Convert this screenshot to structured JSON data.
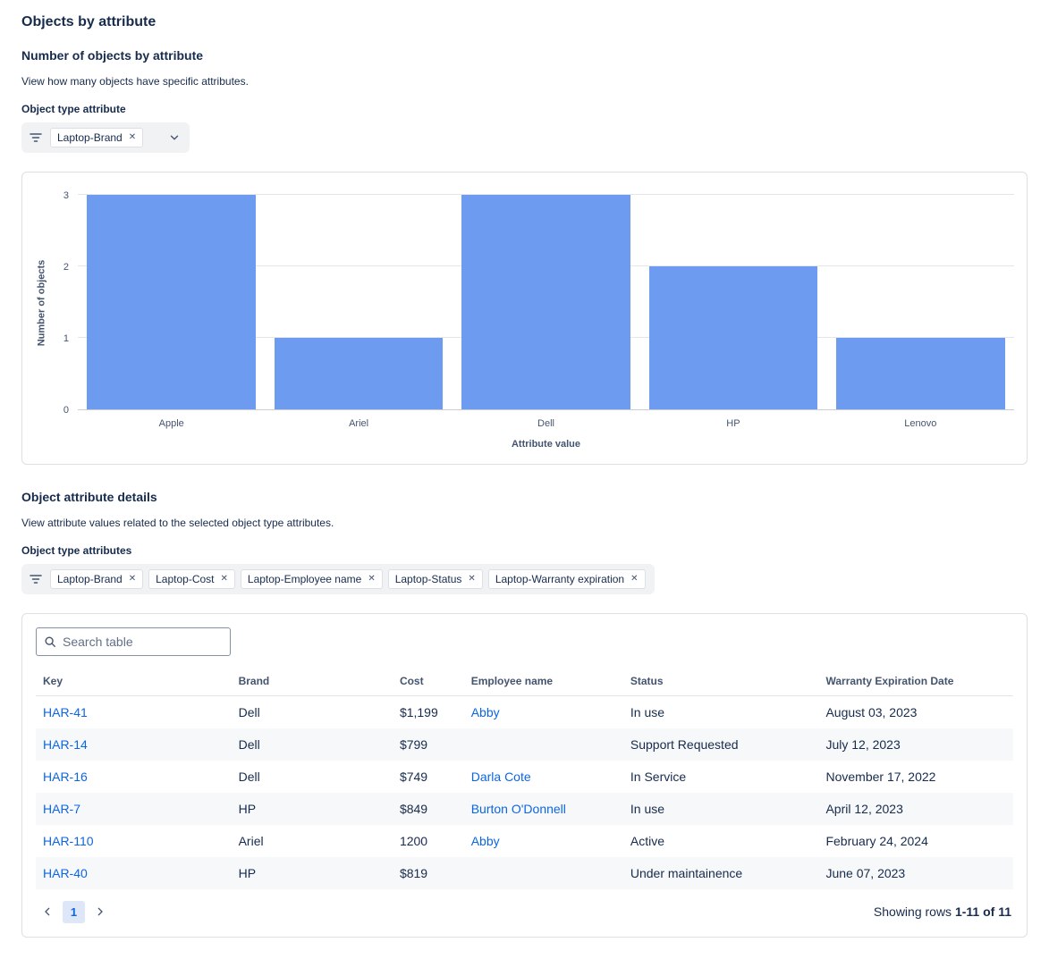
{
  "page": {
    "title": "Objects by attribute"
  },
  "colors": {
    "bar": "#6C9BF0",
    "link": "#0C66E4",
    "selected_page_bg": "#DEE7F7"
  },
  "chart_section": {
    "heading": "Number of objects by attribute",
    "description": "View how many objects have specific attributes.",
    "filter_label": "Object type attribute",
    "filter_tags": [
      "Laptop-Brand"
    ]
  },
  "chart_data": {
    "type": "bar",
    "categories": [
      "Apple",
      "Ariel",
      "Dell",
      "HP",
      "Lenovo"
    ],
    "values": [
      3,
      1,
      3,
      2,
      1
    ],
    "title": "",
    "xlabel": "Attribute value",
    "ylabel": "Number of objects",
    "ylim": [
      0,
      3
    ],
    "yticks": [
      0,
      1,
      2,
      3
    ],
    "bar_color": "#6C9BF0",
    "grid": true,
    "legend": false
  },
  "details_section": {
    "heading": "Object attribute details",
    "description": "View attribute values related to the selected object type attributes.",
    "filter_label": "Object type attributes",
    "filter_tags": [
      "Laptop-Brand",
      "Laptop-Cost",
      "Laptop-Employee name",
      "Laptop-Status",
      "Laptop-Warranty expiration"
    ]
  },
  "table": {
    "search_placeholder": "Search table",
    "columns": [
      "Key",
      "Brand",
      "Cost",
      "Employee name",
      "Status",
      "Warranty Expiration Date"
    ],
    "rows": [
      {
        "key": "HAR-41",
        "brand": "Dell",
        "cost": "$1,199",
        "employee": "Abby",
        "status": "In use",
        "warranty": "August 03, 2023"
      },
      {
        "key": "HAR-14",
        "brand": "Dell",
        "cost": "$799",
        "employee": "",
        "status": "Support Requested",
        "warranty": "July 12, 2023"
      },
      {
        "key": "HAR-16",
        "brand": "Dell",
        "cost": "$749",
        "employee": "Darla Cote",
        "status": "In Service",
        "warranty": "November 17, 2022"
      },
      {
        "key": "HAR-7",
        "brand": "HP",
        "cost": "$849",
        "employee": "Burton O'Donnell",
        "status": "In use",
        "warranty": "April 12, 2023"
      },
      {
        "key": "HAR-110",
        "brand": "Ariel",
        "cost": "1200",
        "employee": "Abby",
        "status": "Active",
        "warranty": "February 24, 2024"
      },
      {
        "key": "HAR-40",
        "brand": "HP",
        "cost": "$819",
        "employee": "",
        "status": "Under maintainence",
        "warranty": "June 07, 2023"
      }
    ],
    "pagination": {
      "current_page": "1",
      "showing_text": "Showing rows",
      "showing_range": "1-11 of 11"
    }
  }
}
